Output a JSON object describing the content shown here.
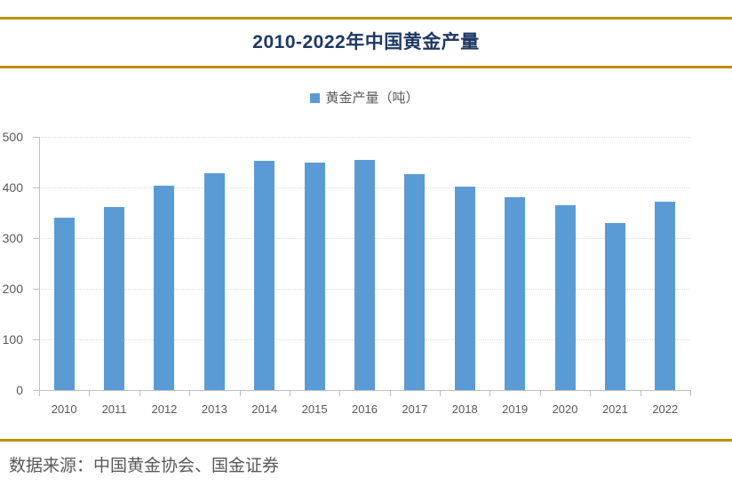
{
  "header": {
    "title": "2010-2022年中国黄金产量"
  },
  "legend": {
    "label": "黄金产量（吨）"
  },
  "footer": {
    "source": "数据来源：中国黄金协会、国金证券"
  },
  "colors": {
    "bar": "#5B9BD5",
    "title": "#1F3864",
    "accent_line": "#BF9000",
    "axis_line": "#BFBFBF",
    "gridline": "#D9D9D9",
    "axis_text": "#595959"
  },
  "chart_data": {
    "type": "bar",
    "title": "2010-2022年中国黄金产量",
    "categories": [
      "2010",
      "2011",
      "2012",
      "2013",
      "2014",
      "2015",
      "2016",
      "2017",
      "2018",
      "2019",
      "2020",
      "2021",
      "2022"
    ],
    "series": [
      {
        "name": "黄金产量（吨）",
        "values": [
          341,
          361,
          403,
          428,
          452,
          450,
          454,
          426,
          401,
          380,
          365,
          329,
          372
        ]
      }
    ],
    "xlabel": "",
    "ylabel": "",
    "ylim": [
      0,
      500
    ],
    "yticks": [
      0,
      100,
      200,
      300,
      400,
      500
    ],
    "grid": "horizontal-dotted",
    "legend_position": "top-center"
  }
}
